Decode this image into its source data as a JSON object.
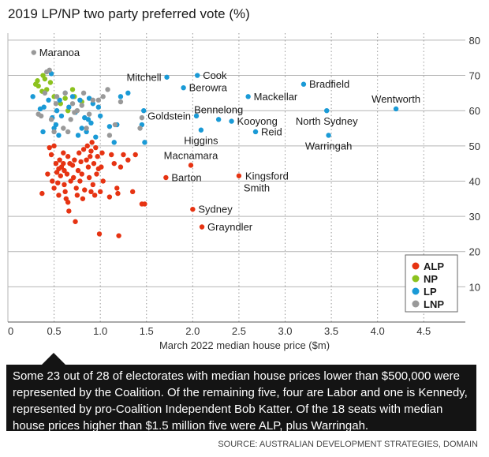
{
  "title": "2019 LP/NP two party preferred vote (%)",
  "caption": "Some 23 out of 28 of electorates with median house prices lower than $500,000 were represented by the Coalition. Of the remaining five, four are Labor and one is Kennedy, represented by pro-Coalition Independent Bob Katter. Of the 18 seats with median house prices higher than $1.5 million five were ALP, plus Warringah.",
  "source": "SOURCE: AUSTRALIAN DEVELOPMENT STRATEGIES, DOMAIN",
  "chart_data": {
    "type": "scatter",
    "title": "2019 LP/NP two party preferred vote (%)",
    "xlabel": "March 2022 median house price ($m)",
    "ylabel": "",
    "xlim": [
      0,
      4.95
    ],
    "ylim": [
      0,
      82
    ],
    "x_ticks": [
      0,
      0.5,
      1.0,
      1.5,
      2.0,
      2.5,
      3.0,
      3.5,
      4.0,
      4.5
    ],
    "x_tick_labels": [
      "0",
      "0.5",
      "1.0",
      "1.5",
      "2.0",
      "2.5",
      "3.0",
      "3.5",
      "4.0",
      "4.5"
    ],
    "y_ticks": [
      10,
      20,
      30,
      40,
      50,
      60,
      70,
      80
    ],
    "y_tick_labels": [
      "10",
      "20",
      "30",
      "40",
      "50",
      "60",
      "70",
      "80"
    ],
    "grid": true,
    "legend_position": "bottom-right",
    "series": [
      {
        "name": "ALP",
        "color": "#e63312",
        "points": [
          [
            0.37,
            36.5
          ],
          [
            0.43,
            42
          ],
          [
            0.45,
            49.5
          ],
          [
            0.47,
            47.5
          ],
          [
            0.48,
            40
          ],
          [
            0.5,
            38
          ],
          [
            0.5,
            50
          ],
          [
            0.52,
            45
          ],
          [
            0.53,
            42.5
          ],
          [
            0.54,
            39.5
          ],
          [
            0.55,
            43.5
          ],
          [
            0.55,
            36
          ],
          [
            0.56,
            46
          ],
          [
            0.57,
            41.5
          ],
          [
            0.58,
            44
          ],
          [
            0.6,
            48
          ],
          [
            0.6,
            45
          ],
          [
            0.61,
            43
          ],
          [
            0.61,
            39
          ],
          [
            0.62,
            37
          ],
          [
            0.63,
            35
          ],
          [
            0.64,
            42
          ],
          [
            0.65,
            47
          ],
          [
            0.65,
            34
          ],
          [
            0.66,
            31.5
          ],
          [
            0.67,
            45
          ],
          [
            0.68,
            40
          ],
          [
            0.7,
            44.5
          ],
          [
            0.71,
            41
          ],
          [
            0.72,
            46
          ],
          [
            0.73,
            28.5
          ],
          [
            0.74,
            38
          ],
          [
            0.75,
            36
          ],
          [
            0.76,
            43
          ],
          [
            0.77,
            48
          ],
          [
            0.78,
            40
          ],
          [
            0.79,
            45.5
          ],
          [
            0.8,
            42
          ],
          [
            0.81,
            35
          ],
          [
            0.82,
            49
          ],
          [
            0.83,
            37.5
          ],
          [
            0.85,
            46
          ],
          [
            0.86,
            50
          ],
          [
            0.87,
            44
          ],
          [
            0.88,
            41
          ],
          [
            0.89,
            47
          ],
          [
            0.9,
            48.5
          ],
          [
            0.9,
            37
          ],
          [
            0.91,
            51
          ],
          [
            0.92,
            39
          ],
          [
            0.93,
            45
          ],
          [
            0.94,
            36
          ],
          [
            0.95,
            49.5
          ],
          [
            0.96,
            42
          ],
          [
            0.97,
            47
          ],
          [
            0.98,
            43.5
          ],
          [
            0.99,
            25
          ],
          [
            1.0,
            37
          ],
          [
            1.01,
            44
          ],
          [
            1.02,
            48
          ],
          [
            1.03,
            40
          ],
          [
            1.1,
            35.5
          ],
          [
            1.12,
            47.5
          ],
          [
            1.15,
            45
          ],
          [
            1.18,
            38
          ],
          [
            1.19,
            36.5
          ],
          [
            1.2,
            24.5
          ],
          [
            1.22,
            44
          ],
          [
            1.25,
            47.5
          ],
          [
            1.3,
            46
          ],
          [
            1.35,
            37
          ],
          [
            1.38,
            47.5
          ],
          [
            1.45,
            33.5
          ],
          [
            1.48,
            33.5
          ],
          [
            1.71,
            41
          ],
          [
            1.98,
            44.5
          ],
          [
            2.0,
            32
          ],
          [
            2.1,
            27
          ],
          [
            2.5,
            41.5
          ]
        ]
      },
      {
        "name": "NP",
        "color": "#8cc21e",
        "points": [
          [
            0.3,
            67.5
          ],
          [
            0.32,
            68.5
          ],
          [
            0.33,
            67
          ],
          [
            0.37,
            65.5
          ],
          [
            0.38,
            70
          ],
          [
            0.4,
            69
          ],
          [
            0.42,
            66
          ],
          [
            0.46,
            68
          ],
          [
            0.5,
            64
          ],
          [
            0.57,
            62
          ],
          [
            0.62,
            63.5
          ],
          [
            0.65,
            60
          ],
          [
            0.7,
            66
          ],
          [
            0.72,
            64
          ],
          [
            0.8,
            62.5
          ]
        ]
      },
      {
        "name": "LP",
        "color": "#1a9ad6",
        "points": [
          [
            0.27,
            64
          ],
          [
            0.35,
            60.5
          ],
          [
            0.38,
            54
          ],
          [
            0.39,
            61
          ],
          [
            0.44,
            63
          ],
          [
            0.47,
            70.5
          ],
          [
            0.48,
            58
          ],
          [
            0.5,
            55
          ],
          [
            0.52,
            56
          ],
          [
            0.53,
            60
          ],
          [
            0.55,
            53
          ],
          [
            0.56,
            63
          ],
          [
            0.58,
            58.5
          ],
          [
            0.62,
            65
          ],
          [
            0.66,
            61
          ],
          [
            0.7,
            64
          ],
          [
            0.73,
            59.5
          ],
          [
            0.76,
            53
          ],
          [
            0.78,
            63
          ],
          [
            0.8,
            55
          ],
          [
            0.83,
            58
          ],
          [
            0.85,
            54
          ],
          [
            0.87,
            57.5
          ],
          [
            0.88,
            63.5
          ],
          [
            0.9,
            56.5
          ],
          [
            0.92,
            62
          ],
          [
            0.95,
            52.5
          ],
          [
            0.98,
            61
          ],
          [
            1.0,
            58.5
          ],
          [
            1.1,
            55.5
          ],
          [
            1.15,
            51
          ],
          [
            1.18,
            56
          ],
          [
            1.22,
            64
          ],
          [
            1.3,
            65
          ],
          [
            1.45,
            56
          ],
          [
            1.47,
            60
          ],
          [
            1.48,
            51
          ],
          [
            1.72,
            69.5
          ],
          [
            1.9,
            66.5
          ],
          [
            2.04,
            58.5
          ],
          [
            2.05,
            70
          ],
          [
            2.09,
            54.5
          ],
          [
            2.28,
            57.5
          ],
          [
            2.42,
            57
          ],
          [
            2.6,
            64
          ],
          [
            2.68,
            54
          ],
          [
            3.2,
            67.5
          ],
          [
            3.45,
            60
          ],
          [
            3.47,
            53
          ],
          [
            4.2,
            60.5
          ]
        ]
      },
      {
        "name": "LNP",
        "color": "#999999",
        "points": [
          [
            0.28,
            76.5
          ],
          [
            0.33,
            59
          ],
          [
            0.36,
            58.5
          ],
          [
            0.4,
            65
          ],
          [
            0.42,
            71
          ],
          [
            0.45,
            71.5
          ],
          [
            0.47,
            57.5
          ],
          [
            0.5,
            54
          ],
          [
            0.52,
            62
          ],
          [
            0.53,
            64
          ],
          [
            0.6,
            55
          ],
          [
            0.62,
            65
          ],
          [
            0.65,
            54
          ],
          [
            0.68,
            57.5
          ],
          [
            0.7,
            62
          ],
          [
            0.72,
            59.5
          ],
          [
            0.75,
            60
          ],
          [
            0.8,
            61.5
          ],
          [
            0.82,
            65
          ],
          [
            0.85,
            55
          ],
          [
            0.88,
            59
          ],
          [
            0.92,
            63
          ],
          [
            0.98,
            63
          ],
          [
            1.03,
            64
          ],
          [
            1.08,
            66
          ],
          [
            1.1,
            53
          ],
          [
            1.16,
            56
          ],
          [
            1.22,
            62.5
          ],
          [
            1.43,
            55
          ],
          [
            1.45,
            58
          ]
        ]
      }
    ],
    "annotations": [
      {
        "text": "Maranoa",
        "x": 0.28,
        "y": 76.5,
        "side": "right"
      },
      {
        "text": "Mitchell",
        "x": 1.72,
        "y": 69.5,
        "side": "left"
      },
      {
        "text": "Cook",
        "x": 2.05,
        "y": 70,
        "side": "right"
      },
      {
        "text": "Berowra",
        "x": 1.9,
        "y": 66.5,
        "side": "right"
      },
      {
        "text": "Bradfield",
        "x": 3.2,
        "y": 67.5,
        "side": "right"
      },
      {
        "text": "Mackellar",
        "x": 2.6,
        "y": 64,
        "side": "right"
      },
      {
        "text": "Wentworth",
        "x": 4.2,
        "y": 60.5,
        "side": "above"
      },
      {
        "text": "Bennelong",
        "x": 2.28,
        "y": 57.5,
        "side": "above"
      },
      {
        "text": "Goldstein",
        "x": 2.04,
        "y": 58.5,
        "side": "left"
      },
      {
        "text": "Kooyong",
        "x": 2.42,
        "y": 57,
        "side": "right"
      },
      {
        "text": "North Sydney",
        "x": 3.45,
        "y": 60,
        "side": "below"
      },
      {
        "text": "Reid",
        "x": 2.68,
        "y": 54,
        "side": "right"
      },
      {
        "text": "Higgins",
        "x": 2.09,
        "y": 54.5,
        "side": "below"
      },
      {
        "text": "Warringah",
        "x": 3.47,
        "y": 53,
        "side": "below"
      },
      {
        "text": "Macnamara",
        "x": 1.98,
        "y": 44.5,
        "side": "above"
      },
      {
        "text": "Barton",
        "x": 1.71,
        "y": 41,
        "side": "right"
      },
      {
        "text": "Kingsford Smith",
        "x": 2.5,
        "y": 41.5,
        "side": "right-stacked"
      },
      {
        "text": "Sydney",
        "x": 2.0,
        "y": 32,
        "side": "right"
      },
      {
        "text": "Grayndler",
        "x": 2.1,
        "y": 27,
        "side": "right"
      }
    ]
  }
}
